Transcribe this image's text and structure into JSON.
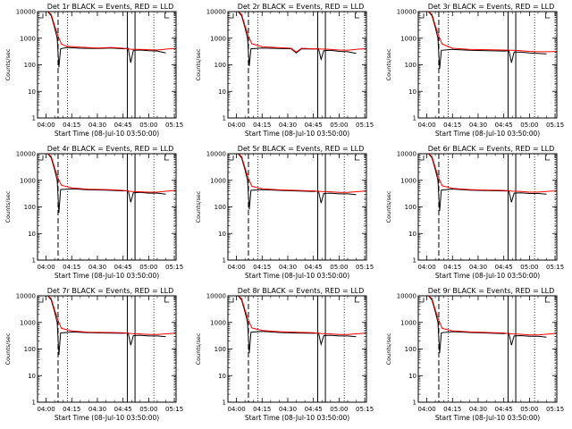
{
  "panel_titles": [
    "Det 1r BLACK = Events, RED = LLD",
    "Det 2r BLACK = Events, RED = LLD",
    "Det 3r BLACK = Events, RED = LLD",
    "Det 4r BLACK = Events, RED = LLD",
    "Det 5r BLACK = Events, RED = LLD",
    "Det 6r BLACK = Events, RED = LLD",
    "Det 7r BLACK = Events, RED = LLD",
    "Det 8r BLACK = Events, RED = LLD",
    "Det 9r BLACK = Events, RED = LLD"
  ],
  "xlabel": "Start Time (08-Jul-10 03:50:00)",
  "ylabel": "Counts/sec",
  "x_tick_labels": [
    "04:00",
    "04:15",
    "04:30",
    "04:45",
    "05:00",
    "05:15"
  ],
  "y_tick_labels": [
    "1",
    "10",
    "100",
    "1000",
    "10000"
  ],
  "colors": {
    "events": "#000000",
    "lld": "#ff0000"
  },
  "chart_data": {
    "type": "line",
    "layout": "3x3 grid",
    "x_units": "minutes since start",
    "xlim": [
      5,
      86
    ],
    "ylim": [
      1,
      10000
    ],
    "yscale": "log",
    "x_ticks": [
      10,
      25,
      40,
      55,
      70,
      85
    ],
    "y_ticks": [
      1,
      10,
      100,
      1000,
      10000
    ],
    "vlines_dashed": [
      17
    ],
    "vlines_solid": [
      57.5,
      62
    ],
    "vlines_dotted": [
      22.5,
      73,
      85
    ],
    "grid": false,
    "panels": [
      {
        "lld": [
          [
            5,
            10000
          ],
          [
            11,
            10000
          ],
          [
            13,
            8000
          ],
          [
            15,
            3000
          ],
          [
            17,
            1200
          ],
          [
            19,
            600
          ],
          [
            22,
            500
          ],
          [
            30,
            460
          ],
          [
            40,
            430
          ],
          [
            48,
            450
          ],
          [
            55,
            420
          ],
          [
            60,
            380
          ],
          [
            65,
            380
          ],
          [
            70,
            370
          ],
          [
            75,
            360
          ],
          [
            82,
            400
          ],
          [
            86,
            410
          ]
        ],
        "events": [
          [
            5,
            10000
          ],
          [
            11,
            10000
          ],
          [
            13,
            7000
          ],
          [
            15,
            2500
          ],
          [
            16.5,
            1000
          ],
          [
            17.5,
            80
          ],
          [
            18.5,
            400
          ],
          [
            22,
            450
          ],
          [
            30,
            420
          ],
          [
            40,
            410
          ],
          [
            48,
            430
          ],
          [
            55,
            400
          ],
          [
            58,
            420
          ],
          [
            59.5,
            120
          ],
          [
            61,
            350
          ],
          [
            65,
            360
          ],
          [
            70,
            340
          ],
          [
            75,
            330
          ],
          [
            80,
            280
          ]
        ]
      },
      {
        "lld": [
          [
            5,
            10000
          ],
          [
            11,
            10000
          ],
          [
            13,
            8000
          ],
          [
            15,
            3000
          ],
          [
            17,
            1200
          ],
          [
            19,
            620
          ],
          [
            25,
            480
          ],
          [
            35,
            440
          ],
          [
            42,
            420
          ],
          [
            45,
            300
          ],
          [
            48,
            420
          ],
          [
            55,
            400
          ],
          [
            60,
            390
          ],
          [
            65,
            380
          ],
          [
            70,
            360
          ],
          [
            75,
            350
          ],
          [
            82,
            390
          ],
          [
            86,
            400
          ]
        ],
        "events": [
          [
            5,
            10000
          ],
          [
            11,
            10000
          ],
          [
            13,
            7000
          ],
          [
            15,
            2500
          ],
          [
            16.5,
            1000
          ],
          [
            17.5,
            90
          ],
          [
            18.5,
            400
          ],
          [
            25,
            430
          ],
          [
            35,
            410
          ],
          [
            42,
            400
          ],
          [
            45,
            280
          ],
          [
            48,
            400
          ],
          [
            55,
            390
          ],
          [
            58,
            400
          ],
          [
            59.5,
            160
          ],
          [
            61,
            340
          ],
          [
            65,
            350
          ],
          [
            70,
            320
          ],
          [
            75,
            310
          ],
          [
            80,
            270
          ]
        ]
      },
      {
        "lld": [
          [
            5,
            10000
          ],
          [
            11,
            10000
          ],
          [
            13,
            8000
          ],
          [
            15,
            3000
          ],
          [
            17,
            1200
          ],
          [
            19,
            600
          ],
          [
            25,
            420
          ],
          [
            35,
            380
          ],
          [
            45,
            370
          ],
          [
            55,
            360
          ],
          [
            60,
            350
          ],
          [
            65,
            340
          ],
          [
            70,
            320
          ],
          [
            75,
            310
          ],
          [
            82,
            310
          ],
          [
            86,
            320
          ]
        ],
        "events": [
          [
            5,
            10000
          ],
          [
            11,
            10000
          ],
          [
            13,
            7000
          ],
          [
            15,
            2500
          ],
          [
            16.5,
            1000
          ],
          [
            17.5,
            70
          ],
          [
            18.5,
            350
          ],
          [
            25,
            380
          ],
          [
            35,
            350
          ],
          [
            45,
            340
          ],
          [
            55,
            330
          ],
          [
            58,
            340
          ],
          [
            59.5,
            120
          ],
          [
            61,
            300
          ],
          [
            65,
            300
          ],
          [
            70,
            280
          ],
          [
            75,
            270
          ],
          [
            80,
            260
          ]
        ]
      },
      {
        "lld": [
          [
            5,
            10000
          ],
          [
            11,
            10000
          ],
          [
            13,
            8000
          ],
          [
            15,
            3000
          ],
          [
            17,
            1200
          ],
          [
            19,
            650
          ],
          [
            25,
            520
          ],
          [
            35,
            460
          ],
          [
            45,
            450
          ],
          [
            55,
            420
          ],
          [
            60,
            380
          ],
          [
            65,
            370
          ],
          [
            70,
            360
          ],
          [
            75,
            360
          ],
          [
            82,
            400
          ],
          [
            86,
            420
          ]
        ],
        "events": [
          [
            5,
            10000
          ],
          [
            11,
            10000
          ],
          [
            13,
            7000
          ],
          [
            15,
            2500
          ],
          [
            16.5,
            1000
          ],
          [
            17.5,
            60
          ],
          [
            18.5,
            450
          ],
          [
            25,
            480
          ],
          [
            35,
            440
          ],
          [
            45,
            430
          ],
          [
            55,
            400
          ],
          [
            58,
            410
          ],
          [
            59.5,
            150
          ],
          [
            61,
            340
          ],
          [
            65,
            350
          ],
          [
            70,
            330
          ],
          [
            75,
            330
          ],
          [
            80,
            300
          ]
        ]
      },
      {
        "lld": [
          [
            5,
            10000
          ],
          [
            11,
            10000
          ],
          [
            13,
            8000
          ],
          [
            15,
            3000
          ],
          [
            17,
            1200
          ],
          [
            19,
            600
          ],
          [
            25,
            480
          ],
          [
            35,
            440
          ],
          [
            45,
            420
          ],
          [
            55,
            400
          ],
          [
            60,
            380
          ],
          [
            65,
            370
          ],
          [
            70,
            350
          ],
          [
            75,
            350
          ],
          [
            82,
            380
          ],
          [
            86,
            400
          ]
        ],
        "events": [
          [
            5,
            10000
          ],
          [
            11,
            10000
          ],
          [
            13,
            7000
          ],
          [
            15,
            2500
          ],
          [
            16.5,
            1000
          ],
          [
            17.5,
            80
          ],
          [
            18.5,
            420
          ],
          [
            25,
            450
          ],
          [
            35,
            420
          ],
          [
            45,
            400
          ],
          [
            55,
            380
          ],
          [
            58,
            390
          ],
          [
            59.5,
            140
          ],
          [
            61,
            320
          ],
          [
            65,
            330
          ],
          [
            70,
            310
          ],
          [
            75,
            310
          ],
          [
            80,
            290
          ]
        ]
      },
      {
        "lld": [
          [
            5,
            10000
          ],
          [
            11,
            10000
          ],
          [
            13,
            8000
          ],
          [
            15,
            3000
          ],
          [
            17,
            1200
          ],
          [
            19,
            620
          ],
          [
            25,
            500
          ],
          [
            35,
            450
          ],
          [
            45,
            430
          ],
          [
            55,
            420
          ],
          [
            60,
            390
          ],
          [
            65,
            380
          ],
          [
            70,
            360
          ],
          [
            75,
            360
          ],
          [
            82,
            390
          ],
          [
            86,
            400
          ]
        ],
        "events": [
          [
            5,
            10000
          ],
          [
            11,
            10000
          ],
          [
            13,
            7000
          ],
          [
            15,
            2500
          ],
          [
            16.5,
            1000
          ],
          [
            17.5,
            70
          ],
          [
            18.5,
            430
          ],
          [
            25,
            470
          ],
          [
            35,
            430
          ],
          [
            45,
            410
          ],
          [
            55,
            400
          ],
          [
            58,
            400
          ],
          [
            59.5,
            150
          ],
          [
            61,
            330
          ],
          [
            65,
            340
          ],
          [
            70,
            320
          ],
          [
            75,
            320
          ],
          [
            80,
            300
          ]
        ]
      },
      {
        "lld": [
          [
            5,
            10000
          ],
          [
            11,
            10000
          ],
          [
            13,
            8000
          ],
          [
            15,
            3000
          ],
          [
            17,
            1200
          ],
          [
            19,
            600
          ],
          [
            25,
            480
          ],
          [
            35,
            430
          ],
          [
            45,
            420
          ],
          [
            55,
            410
          ],
          [
            60,
            380
          ],
          [
            65,
            370
          ],
          [
            70,
            350
          ],
          [
            75,
            350
          ],
          [
            82,
            380
          ],
          [
            86,
            400
          ]
        ],
        "events": [
          [
            5,
            10000
          ],
          [
            11,
            10000
          ],
          [
            13,
            7000
          ],
          [
            15,
            2500
          ],
          [
            16.5,
            1000
          ],
          [
            17.5,
            60
          ],
          [
            18.5,
            400
          ],
          [
            25,
            440
          ],
          [
            35,
            410
          ],
          [
            45,
            400
          ],
          [
            55,
            390
          ],
          [
            58,
            400
          ],
          [
            59.5,
            140
          ],
          [
            61,
            320
          ],
          [
            65,
            330
          ],
          [
            70,
            310
          ],
          [
            75,
            310
          ],
          [
            80,
            290
          ]
        ]
      },
      {
        "lld": [
          [
            5,
            10000
          ],
          [
            11,
            10000
          ],
          [
            13,
            8000
          ],
          [
            15,
            3000
          ],
          [
            17,
            1200
          ],
          [
            19,
            620
          ],
          [
            25,
            500
          ],
          [
            35,
            450
          ],
          [
            45,
            430
          ],
          [
            55,
            410
          ],
          [
            60,
            380
          ],
          [
            65,
            370
          ],
          [
            70,
            350
          ],
          [
            75,
            350
          ],
          [
            82,
            380
          ],
          [
            86,
            400
          ]
        ],
        "events": [
          [
            5,
            10000
          ],
          [
            11,
            10000
          ],
          [
            13,
            7000
          ],
          [
            15,
            2500
          ],
          [
            16.5,
            1000
          ],
          [
            17.5,
            70
          ],
          [
            18.5,
            430
          ],
          [
            25,
            460
          ],
          [
            35,
            420
          ],
          [
            45,
            400
          ],
          [
            55,
            390
          ],
          [
            58,
            400
          ],
          [
            59.5,
            150
          ],
          [
            61,
            320
          ],
          [
            65,
            330
          ],
          [
            70,
            310
          ],
          [
            75,
            310
          ],
          [
            80,
            290
          ]
        ]
      },
      {
        "lld": [
          [
            5,
            10000
          ],
          [
            11,
            10000
          ],
          [
            13,
            8000
          ],
          [
            15,
            3000
          ],
          [
            17,
            1200
          ],
          [
            19,
            600
          ],
          [
            25,
            480
          ],
          [
            35,
            440
          ],
          [
            45,
            420
          ],
          [
            55,
            400
          ],
          [
            60,
            370
          ],
          [
            65,
            360
          ],
          [
            70,
            340
          ],
          [
            75,
            340
          ],
          [
            82,
            370
          ],
          [
            86,
            390
          ]
        ],
        "events": [
          [
            5,
            10000
          ],
          [
            11,
            10000
          ],
          [
            13,
            7000
          ],
          [
            15,
            2500
          ],
          [
            16.5,
            1000
          ],
          [
            17.5,
            70
          ],
          [
            18.5,
            410
          ],
          [
            25,
            450
          ],
          [
            35,
            420
          ],
          [
            45,
            400
          ],
          [
            55,
            380
          ],
          [
            58,
            390
          ],
          [
            59.5,
            140
          ],
          [
            61,
            310
          ],
          [
            65,
            320
          ],
          [
            70,
            300
          ],
          [
            75,
            300
          ],
          [
            80,
            280
          ]
        ]
      }
    ]
  }
}
